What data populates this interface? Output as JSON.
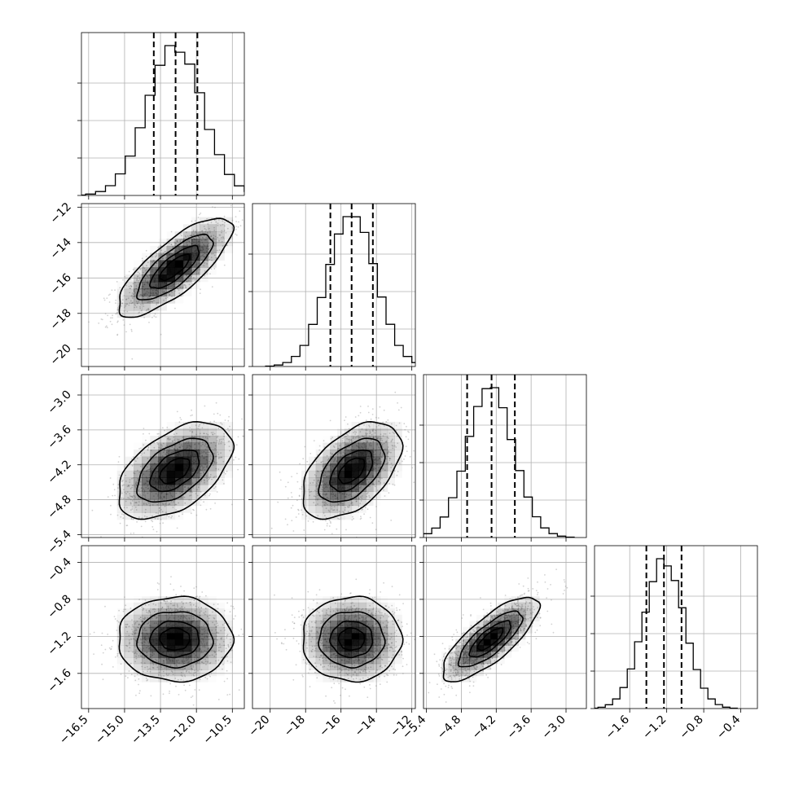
{
  "chart_data": {
    "type": "corner",
    "parameters": [
      {
        "range": [
          -16.8,
          -10.0
        ],
        "ticks": [
          -16.5,
          -15.0,
          -13.5,
          -12.0,
          -10.5
        ],
        "tick_labels": [
          "−16.5",
          "−15.0",
          "−13.5",
          "−12.0",
          "−10.5"
        ],
        "mean": -12.9,
        "sd": 1.15,
        "quantiles": [
          -13.78,
          -12.87,
          -11.96
        ]
      },
      {
        "range": [
          -21.0,
          -11.8
        ],
        "ticks": [
          -20,
          -18,
          -16,
          -14,
          -12
        ],
        "tick_labels": [
          "−20",
          "−18",
          "−16",
          "−14",
          "−12"
        ],
        "mean": -15.4,
        "sd": 1.35,
        "quantiles": [
          -16.6,
          -15.4,
          -14.2
        ]
      },
      {
        "range": [
          -5.45,
          -2.65
        ],
        "ticks": [
          -5.4,
          -4.8,
          -4.2,
          -3.6,
          -3.0
        ],
        "tick_labels": [
          "−5.4",
          "−4.8",
          "−4.2",
          "−3.6",
          "−3.0"
        ],
        "mean": -4.3,
        "sd": 0.4,
        "quantiles": [
          -4.7,
          -4.28,
          -3.88
        ]
      },
      {
        "range": [
          -1.98,
          -0.22
        ],
        "ticks": [
          -1.6,
          -1.2,
          -0.8,
          -0.4
        ],
        "tick_labels": [
          "−1.6",
          "−1.2",
          "−0.8",
          "−0.4"
        ],
        "mean": -1.23,
        "sd": 0.22,
        "quantiles": [
          -1.42,
          -1.23,
          -1.04
        ]
      }
    ],
    "correlations": [
      [
        1.0,
        0.78,
        0.5,
        0.0
      ],
      [
        0.78,
        1.0,
        0.5,
        0.0
      ],
      [
        0.5,
        0.5,
        1.0,
        0.78
      ],
      [
        0.0,
        0.0,
        0.78,
        1.0
      ]
    ],
    "contour_levels_sigma": [
      0.5,
      1.0,
      1.5,
      2.0
    ],
    "histogram_bins": 20,
    "grid": true,
    "scatter_color": "#7f7f7f",
    "density_color": "#000000"
  }
}
